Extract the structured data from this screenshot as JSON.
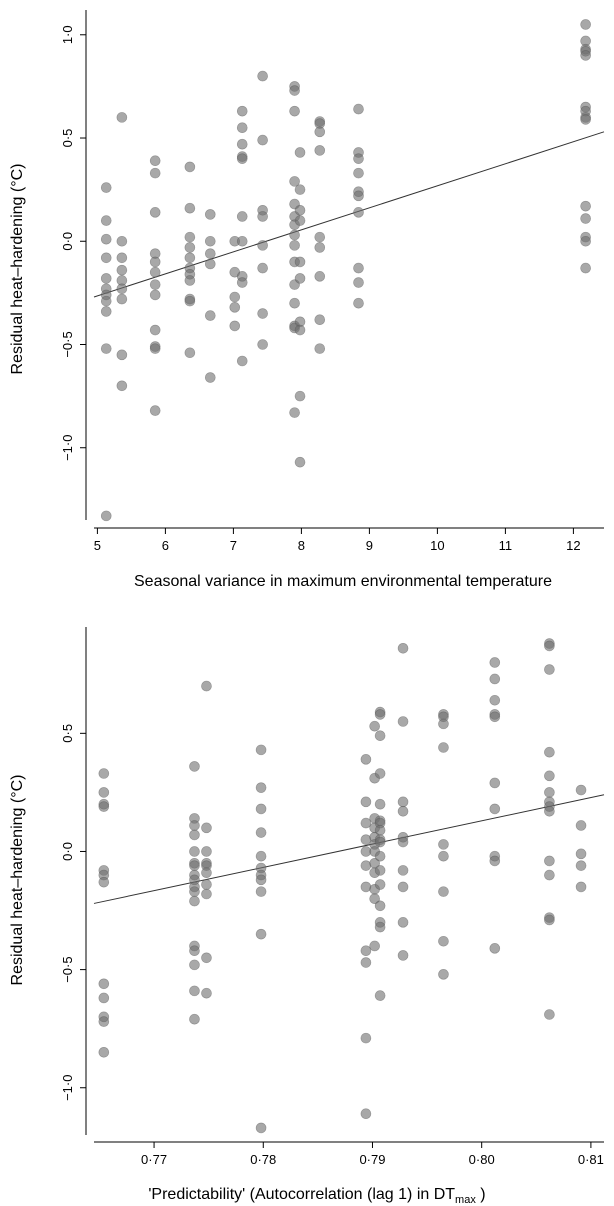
{
  "chart_data": [
    {
      "type": "scatter",
      "title": "",
      "xlabel": "Seasonal variance in maximum environmental temperature",
      "ylabel": "Residual heat–hardening (°C)",
      "xlim": [
        4.95,
        12.45
      ],
      "ylim": [
        -1.35,
        1.12
      ],
      "xticks": [
        5,
        6,
        7,
        8,
        9,
        10,
        11,
        12
      ],
      "xtick_labels": [
        "5",
        "6",
        "7",
        "8",
        "9",
        "10",
        "11",
        "12"
      ],
      "yticks": [
        -1.0,
        -0.5,
        0.0,
        0.5,
        1.0
      ],
      "ytick_labels": [
        "−1·0",
        "−0·5",
        "0·0",
        "0·5",
        "1·0"
      ],
      "trend_line": {
        "x": [
          4.95,
          12.45
        ],
        "y": [
          -0.27,
          0.53
        ]
      },
      "points": [
        [
          5.13,
          0.26
        ],
        [
          5.13,
          0.1
        ],
        [
          5.13,
          0.01
        ],
        [
          5.13,
          -0.08
        ],
        [
          5.13,
          -0.18
        ],
        [
          5.13,
          -0.23
        ],
        [
          5.13,
          -0.26
        ],
        [
          5.13,
          -0.29
        ],
        [
          5.13,
          -0.34
        ],
        [
          5.13,
          -0.52
        ],
        [
          5.13,
          -1.33
        ],
        [
          5.36,
          0.6
        ],
        [
          5.36,
          0.0
        ],
        [
          5.36,
          -0.08
        ],
        [
          5.36,
          -0.14
        ],
        [
          5.36,
          -0.19
        ],
        [
          5.36,
          -0.23
        ],
        [
          5.36,
          -0.28
        ],
        [
          5.36,
          -0.55
        ],
        [
          5.36,
          -0.7
        ],
        [
          5.85,
          0.39
        ],
        [
          5.85,
          0.33
        ],
        [
          5.85,
          0.14
        ],
        [
          5.85,
          -0.06
        ],
        [
          5.85,
          -0.1
        ],
        [
          5.85,
          -0.15
        ],
        [
          5.85,
          -0.21
        ],
        [
          5.85,
          -0.26
        ],
        [
          5.85,
          -0.43
        ],
        [
          5.85,
          -0.51
        ],
        [
          5.85,
          -0.52
        ],
        [
          5.85,
          -0.82
        ],
        [
          6.36,
          0.36
        ],
        [
          6.36,
          0.16
        ],
        [
          6.36,
          0.02
        ],
        [
          6.36,
          -0.03
        ],
        [
          6.36,
          -0.08
        ],
        [
          6.36,
          -0.13
        ],
        [
          6.36,
          -0.16
        ],
        [
          6.36,
          -0.19
        ],
        [
          6.36,
          -0.28
        ],
        [
          6.36,
          -0.29
        ],
        [
          6.36,
          -0.54
        ],
        [
          6.66,
          0.13
        ],
        [
          6.66,
          0.0
        ],
        [
          6.66,
          -0.06
        ],
        [
          6.66,
          -0.11
        ],
        [
          6.66,
          -0.36
        ],
        [
          6.66,
          -0.66
        ],
        [
          7.02,
          0.0
        ],
        [
          7.02,
          -0.15
        ],
        [
          7.02,
          -0.27
        ],
        [
          7.02,
          -0.32
        ],
        [
          7.02,
          -0.41
        ],
        [
          7.13,
          0.63
        ],
        [
          7.13,
          0.55
        ],
        [
          7.13,
          0.47
        ],
        [
          7.13,
          0.41
        ],
        [
          7.13,
          0.4
        ],
        [
          7.13,
          0.12
        ],
        [
          7.13,
          0.0
        ],
        [
          7.13,
          -0.17
        ],
        [
          7.13,
          -0.2
        ],
        [
          7.13,
          -0.58
        ],
        [
          7.43,
          0.8
        ],
        [
          7.43,
          0.49
        ],
        [
          7.43,
          0.15
        ],
        [
          7.43,
          0.12
        ],
        [
          7.43,
          -0.02
        ],
        [
          7.43,
          -0.13
        ],
        [
          7.43,
          -0.35
        ],
        [
          7.43,
          -0.5
        ],
        [
          7.9,
          0.75
        ],
        [
          7.9,
          0.73
        ],
        [
          7.9,
          0.63
        ],
        [
          7.9,
          0.29
        ],
        [
          7.9,
          0.18
        ],
        [
          7.9,
          0.12
        ],
        [
          7.9,
          0.08
        ],
        [
          7.9,
          0.03
        ],
        [
          7.9,
          -0.02
        ],
        [
          7.9,
          -0.1
        ],
        [
          7.9,
          -0.21
        ],
        [
          7.9,
          -0.3
        ],
        [
          7.9,
          -0.41
        ],
        [
          7.9,
          -0.42
        ],
        [
          7.9,
          -0.83
        ],
        [
          7.98,
          0.43
        ],
        [
          7.98,
          0.25
        ],
        [
          7.98,
          0.15
        ],
        [
          7.98,
          0.1
        ],
        [
          7.98,
          -0.1
        ],
        [
          7.98,
          -0.18
        ],
        [
          7.98,
          -0.39
        ],
        [
          7.98,
          -0.43
        ],
        [
          7.98,
          -0.75
        ],
        [
          7.98,
          -1.07
        ],
        [
          8.27,
          0.58
        ],
        [
          8.27,
          0.57
        ],
        [
          8.27,
          0.53
        ],
        [
          8.27,
          0.44
        ],
        [
          8.27,
          0.02
        ],
        [
          8.27,
          -0.03
        ],
        [
          8.27,
          -0.17
        ],
        [
          8.27,
          -0.38
        ],
        [
          8.27,
          -0.52
        ],
        [
          8.84,
          0.64
        ],
        [
          8.84,
          0.43
        ],
        [
          8.84,
          0.4
        ],
        [
          8.84,
          0.33
        ],
        [
          8.84,
          0.24
        ],
        [
          8.84,
          0.22
        ],
        [
          8.84,
          0.14
        ],
        [
          8.84,
          -0.13
        ],
        [
          8.84,
          -0.2
        ],
        [
          8.84,
          -0.3
        ],
        [
          12.18,
          1.05
        ],
        [
          12.18,
          0.97
        ],
        [
          12.18,
          0.93
        ],
        [
          12.18,
          0.92
        ],
        [
          12.18,
          0.9
        ],
        [
          12.18,
          0.65
        ],
        [
          12.18,
          0.63
        ],
        [
          12.18,
          0.6
        ],
        [
          12.18,
          0.59
        ],
        [
          12.18,
          0.17
        ],
        [
          12.18,
          0.11
        ],
        [
          12.18,
          0.02
        ],
        [
          12.18,
          0.0
        ],
        [
          12.18,
          -0.13
        ]
      ]
    },
    {
      "type": "scatter",
      "title": "",
      "xlabel": "'Predictability' (Autocorrelation (lag 1) in DT",
      "xlabel_sub": "max",
      "xlabel_tail": " )",
      "ylabel": "Residual heat–hardening (°C)",
      "xlim": [
        0.7645,
        0.8112
      ],
      "ylim": [
        -1.2,
        0.95
      ],
      "xticks": [
        0.77,
        0.78,
        0.79,
        0.8,
        0.81
      ],
      "xtick_labels": [
        "0·77",
        "0·78",
        "0·79",
        "0·80",
        "0·81"
      ],
      "yticks": [
        -1.0,
        -0.5,
        0.0,
        0.5
      ],
      "ytick_labels": [
        "−1·0",
        "−0·5",
        "0·0",
        "0·5"
      ],
      "trend_line": {
        "x": [
          0.7645,
          0.8112
        ],
        "y": [
          -0.22,
          0.24
        ]
      },
      "points": [
        [
          0.7654,
          0.33
        ],
        [
          0.7654,
          0.25
        ],
        [
          0.7654,
          0.2
        ],
        [
          0.7654,
          0.19
        ],
        [
          0.7654,
          -0.08
        ],
        [
          0.7654,
          -0.1
        ],
        [
          0.7654,
          -0.13
        ],
        [
          0.7654,
          -0.56
        ],
        [
          0.7654,
          -0.62
        ],
        [
          0.7654,
          -0.7
        ],
        [
          0.7654,
          -0.72
        ],
        [
          0.7654,
          -0.85
        ],
        [
          0.7737,
          0.36
        ],
        [
          0.7737,
          0.14
        ],
        [
          0.7737,
          0.11
        ],
        [
          0.7737,
          0.07
        ],
        [
          0.7737,
          0.0
        ],
        [
          0.7737,
          -0.05
        ],
        [
          0.7737,
          -0.06
        ],
        [
          0.7737,
          -0.1
        ],
        [
          0.7737,
          -0.12
        ],
        [
          0.7737,
          -0.15
        ],
        [
          0.7737,
          -0.17
        ],
        [
          0.7737,
          -0.21
        ],
        [
          0.7737,
          -0.4
        ],
        [
          0.7737,
          -0.42
        ],
        [
          0.7737,
          -0.48
        ],
        [
          0.7737,
          -0.59
        ],
        [
          0.7737,
          -0.71
        ],
        [
          0.7748,
          0.7
        ],
        [
          0.7748,
          0.1
        ],
        [
          0.7748,
          0.0
        ],
        [
          0.7748,
          -0.05
        ],
        [
          0.7748,
          -0.06
        ],
        [
          0.7748,
          -0.09
        ],
        [
          0.7748,
          -0.14
        ],
        [
          0.7748,
          -0.18
        ],
        [
          0.7748,
          -0.45
        ],
        [
          0.7748,
          -0.6
        ],
        [
          0.7798,
          0.43
        ],
        [
          0.7798,
          0.27
        ],
        [
          0.7798,
          0.18
        ],
        [
          0.7798,
          0.08
        ],
        [
          0.7798,
          -0.02
        ],
        [
          0.7798,
          -0.07
        ],
        [
          0.7798,
          -0.1
        ],
        [
          0.7798,
          -0.12
        ],
        [
          0.7798,
          -0.17
        ],
        [
          0.7798,
          -0.35
        ],
        [
          0.7798,
          -1.17
        ],
        [
          0.7894,
          0.39
        ],
        [
          0.7894,
          0.21
        ],
        [
          0.7894,
          0.12
        ],
        [
          0.7894,
          0.05
        ],
        [
          0.7894,
          0.0
        ],
        [
          0.7894,
          -0.06
        ],
        [
          0.7894,
          -0.15
        ],
        [
          0.7894,
          -0.42
        ],
        [
          0.7894,
          -0.47
        ],
        [
          0.7894,
          -0.79
        ],
        [
          0.7894,
          -1.11
        ],
        [
          0.7902,
          0.53
        ],
        [
          0.7902,
          0.31
        ],
        [
          0.7902,
          0.14
        ],
        [
          0.7902,
          0.1
        ],
        [
          0.7902,
          0.06
        ],
        [
          0.7902,
          0.03
        ],
        [
          0.7902,
          0.0
        ],
        [
          0.7902,
          -0.05
        ],
        [
          0.7902,
          -0.09
        ],
        [
          0.7902,
          -0.16
        ],
        [
          0.7902,
          -0.2
        ],
        [
          0.7902,
          -0.4
        ],
        [
          0.7907,
          0.59
        ],
        [
          0.7907,
          0.58
        ],
        [
          0.7907,
          0.49
        ],
        [
          0.7907,
          0.33
        ],
        [
          0.7907,
          0.2
        ],
        [
          0.7907,
          0.13
        ],
        [
          0.7907,
          0.12
        ],
        [
          0.7907,
          0.09
        ],
        [
          0.7907,
          0.05
        ],
        [
          0.7907,
          0.04
        ],
        [
          0.7907,
          -0.02
        ],
        [
          0.7907,
          -0.08
        ],
        [
          0.7907,
          -0.14
        ],
        [
          0.7907,
          -0.23
        ],
        [
          0.7907,
          -0.3
        ],
        [
          0.7907,
          -0.32
        ],
        [
          0.7907,
          -0.61
        ],
        [
          0.7928,
          0.86
        ],
        [
          0.7928,
          0.55
        ],
        [
          0.7928,
          0.21
        ],
        [
          0.7928,
          0.17
        ],
        [
          0.7928,
          0.06
        ],
        [
          0.7928,
          0.04
        ],
        [
          0.7928,
          -0.08
        ],
        [
          0.7928,
          -0.15
        ],
        [
          0.7928,
          -0.3
        ],
        [
          0.7928,
          -0.44
        ],
        [
          0.7965,
          0.58
        ],
        [
          0.7965,
          0.57
        ],
        [
          0.7965,
          0.54
        ],
        [
          0.7965,
          0.44
        ],
        [
          0.7965,
          0.03
        ],
        [
          0.7965,
          -0.02
        ],
        [
          0.7965,
          -0.17
        ],
        [
          0.7965,
          -0.38
        ],
        [
          0.7965,
          -0.52
        ],
        [
          0.8012,
          0.8
        ],
        [
          0.8012,
          0.73
        ],
        [
          0.8012,
          0.64
        ],
        [
          0.8012,
          0.58
        ],
        [
          0.8012,
          0.57
        ],
        [
          0.8012,
          0.29
        ],
        [
          0.8012,
          0.18
        ],
        [
          0.8012,
          -0.02
        ],
        [
          0.8012,
          -0.04
        ],
        [
          0.8012,
          -0.41
        ],
        [
          0.8062,
          0.88
        ],
        [
          0.8062,
          0.87
        ],
        [
          0.8062,
          0.77
        ],
        [
          0.8062,
          0.42
        ],
        [
          0.8062,
          0.32
        ],
        [
          0.8062,
          0.25
        ],
        [
          0.8062,
          0.21
        ],
        [
          0.8062,
          0.19
        ],
        [
          0.8062,
          0.17
        ],
        [
          0.8062,
          -0.04
        ],
        [
          0.8062,
          -0.1
        ],
        [
          0.8062,
          -0.28
        ],
        [
          0.8062,
          -0.29
        ],
        [
          0.8062,
          -0.69
        ],
        [
          0.8091,
          0.26
        ],
        [
          0.8091,
          0.11
        ],
        [
          0.8091,
          -0.01
        ],
        [
          0.8091,
          -0.06
        ],
        [
          0.8091,
          -0.15
        ]
      ]
    }
  ]
}
